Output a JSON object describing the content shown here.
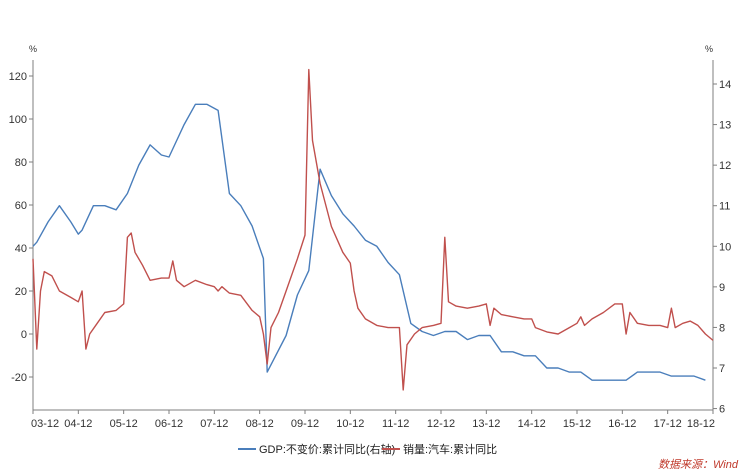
{
  "chart_data": {
    "type": "line",
    "left_axis": {
      "unit": "%",
      "ylim": [
        -30,
        130
      ],
      "ticks": [
        -20,
        0,
        20,
        40,
        60,
        80,
        100,
        120
      ]
    },
    "right_axis": {
      "unit": "%",
      "ylim": [
        6,
        14.6
      ],
      "ticks": [
        6,
        7,
        8,
        9,
        10,
        11,
        12,
        13,
        14
      ]
    },
    "x_axis": {
      "range": [
        2003.917,
        2018.917
      ],
      "ticks": [
        {
          "x": 2003.917,
          "label": "03-12"
        },
        {
          "x": 2004.917,
          "label": "04-12"
        },
        {
          "x": 2005.917,
          "label": "05-12"
        },
        {
          "x": 2006.917,
          "label": "06-12"
        },
        {
          "x": 2007.917,
          "label": "07-12"
        },
        {
          "x": 2008.917,
          "label": "08-12"
        },
        {
          "x": 2009.917,
          "label": "09-12"
        },
        {
          "x": 2010.917,
          "label": "10-12"
        },
        {
          "x": 2011.917,
          "label": "11-12"
        },
        {
          "x": 2012.917,
          "label": "12-12"
        },
        {
          "x": 2013.917,
          "label": "13-12"
        },
        {
          "x": 2014.917,
          "label": "14-12"
        },
        {
          "x": 2015.917,
          "label": "15-12"
        },
        {
          "x": 2016.917,
          "label": "16-12"
        },
        {
          "x": 2017.917,
          "label": "17-12"
        },
        {
          "x": 2018.917,
          "label": "18-12"
        }
      ]
    },
    "series": [
      {
        "name": "GDP:不变价:累计同比(右轴)",
        "axis": "right",
        "color": "#4a7ebb",
        "points": [
          [
            2003.917,
            10.0
          ],
          [
            2004.0,
            10.1
          ],
          [
            2004.25,
            10.6
          ],
          [
            2004.5,
            11.0
          ],
          [
            2004.75,
            10.6
          ],
          [
            2004.917,
            10.3
          ],
          [
            2005.0,
            10.4
          ],
          [
            2005.25,
            11.0
          ],
          [
            2005.5,
            11.0
          ],
          [
            2005.75,
            10.9
          ],
          [
            2006.0,
            11.3
          ],
          [
            2006.25,
            12.0
          ],
          [
            2006.5,
            12.5
          ],
          [
            2006.75,
            12.25
          ],
          [
            2006.917,
            12.2
          ],
          [
            2007.25,
            13.0
          ],
          [
            2007.5,
            13.5
          ],
          [
            2007.75,
            13.5
          ],
          [
            2008.0,
            13.35
          ],
          [
            2008.25,
            11.3
          ],
          [
            2008.5,
            11.0
          ],
          [
            2008.75,
            10.5
          ],
          [
            2009.0,
            9.7
          ],
          [
            2009.083,
            6.9
          ],
          [
            2009.5,
            7.8
          ],
          [
            2009.75,
            8.8
          ],
          [
            2010.0,
            9.4
          ],
          [
            2010.25,
            11.9
          ],
          [
            2010.5,
            11.25
          ],
          [
            2010.75,
            10.8
          ],
          [
            2011.0,
            10.5
          ],
          [
            2011.25,
            10.15
          ],
          [
            2011.5,
            10.0
          ],
          [
            2011.75,
            9.6
          ],
          [
            2012.0,
            9.3
          ],
          [
            2012.25,
            8.1
          ],
          [
            2012.5,
            7.9
          ],
          [
            2012.75,
            7.8
          ],
          [
            2013.0,
            7.9
          ],
          [
            2013.25,
            7.9
          ],
          [
            2013.5,
            7.7
          ],
          [
            2013.75,
            7.8
          ],
          [
            2014.0,
            7.8
          ],
          [
            2014.25,
            7.4
          ],
          [
            2014.5,
            7.4
          ],
          [
            2014.75,
            7.3
          ],
          [
            2015.0,
            7.3
          ],
          [
            2015.25,
            7.0
          ],
          [
            2015.5,
            7.0
          ],
          [
            2015.75,
            6.9
          ],
          [
            2016.0,
            6.9
          ],
          [
            2016.25,
            6.7
          ],
          [
            2016.5,
            6.7
          ],
          [
            2016.75,
            6.7
          ],
          [
            2017.0,
            6.7
          ],
          [
            2017.25,
            6.9
          ],
          [
            2017.5,
            6.9
          ],
          [
            2017.75,
            6.9
          ],
          [
            2018.0,
            6.8
          ],
          [
            2018.25,
            6.8
          ],
          [
            2018.5,
            6.8
          ],
          [
            2018.75,
            6.7
          ]
        ]
      },
      {
        "name": "销量:汽车:累计同比",
        "axis": "left",
        "color": "#c0504d",
        "points": [
          [
            2003.917,
            35
          ],
          [
            2004.0,
            -7
          ],
          [
            2004.083,
            20
          ],
          [
            2004.167,
            29
          ],
          [
            2004.333,
            27
          ],
          [
            2004.5,
            20
          ],
          [
            2004.75,
            17
          ],
          [
            2004.917,
            15
          ],
          [
            2005.0,
            20
          ],
          [
            2005.083,
            -7
          ],
          [
            2005.167,
            0
          ],
          [
            2005.333,
            5
          ],
          [
            2005.5,
            10
          ],
          [
            2005.75,
            11
          ],
          [
            2005.917,
            14
          ],
          [
            2006.0,
            45
          ],
          [
            2006.083,
            47
          ],
          [
            2006.167,
            38
          ],
          [
            2006.333,
            32
          ],
          [
            2006.5,
            25
          ],
          [
            2006.75,
            26
          ],
          [
            2006.917,
            26
          ],
          [
            2007.0,
            34
          ],
          [
            2007.083,
            25
          ],
          [
            2007.25,
            22
          ],
          [
            2007.5,
            25
          ],
          [
            2007.75,
            23
          ],
          [
            2007.917,
            22
          ],
          [
            2008.0,
            20
          ],
          [
            2008.083,
            22
          ],
          [
            2008.25,
            19
          ],
          [
            2008.5,
            18
          ],
          [
            2008.75,
            11
          ],
          [
            2008.917,
            8
          ],
          [
            2009.0,
            0
          ],
          [
            2009.083,
            -14
          ],
          [
            2009.167,
            3
          ],
          [
            2009.333,
            10
          ],
          [
            2009.5,
            20
          ],
          [
            2009.75,
            35
          ],
          [
            2009.917,
            46
          ],
          [
            2010.0,
            123
          ],
          [
            2010.083,
            90
          ],
          [
            2010.25,
            70
          ],
          [
            2010.5,
            50
          ],
          [
            2010.75,
            38
          ],
          [
            2010.917,
            33
          ],
          [
            2011.0,
            20
          ],
          [
            2011.083,
            12
          ],
          [
            2011.25,
            7
          ],
          [
            2011.5,
            4
          ],
          [
            2011.75,
            3
          ],
          [
            2011.917,
            3
          ],
          [
            2012.0,
            3
          ],
          [
            2012.083,
            -26
          ],
          [
            2012.167,
            -5
          ],
          [
            2012.333,
            0
          ],
          [
            2012.5,
            3
          ],
          [
            2012.75,
            4
          ],
          [
            2012.917,
            5
          ],
          [
            2013.0,
            45
          ],
          [
            2013.083,
            15
          ],
          [
            2013.25,
            13
          ],
          [
            2013.5,
            12
          ],
          [
            2013.75,
            13
          ],
          [
            2013.917,
            14
          ],
          [
            2014.0,
            4
          ],
          [
            2014.083,
            12
          ],
          [
            2014.25,
            9
          ],
          [
            2014.5,
            8
          ],
          [
            2014.75,
            7
          ],
          [
            2014.917,
            7
          ],
          [
            2015.0,
            3
          ],
          [
            2015.25,
            1
          ],
          [
            2015.5,
            0
          ],
          [
            2015.75,
            3
          ],
          [
            2015.917,
            5
          ],
          [
            2016.0,
            8
          ],
          [
            2016.083,
            4
          ],
          [
            2016.25,
            7
          ],
          [
            2016.5,
            10
          ],
          [
            2016.75,
            14
          ],
          [
            2016.917,
            14
          ],
          [
            2017.0,
            0
          ],
          [
            2017.083,
            10
          ],
          [
            2017.25,
            5
          ],
          [
            2017.5,
            4
          ],
          [
            2017.75,
            4
          ],
          [
            2017.917,
            3
          ],
          [
            2018.0,
            12
          ],
          [
            2018.083,
            3
          ],
          [
            2018.25,
            5
          ],
          [
            2018.417,
            6
          ],
          [
            2018.583,
            4
          ],
          [
            2018.75,
            0
          ],
          [
            2018.917,
            -3
          ]
        ]
      }
    ],
    "legend_position": "bottom-center",
    "grid": false
  },
  "source_text": "数据来源：Wind"
}
